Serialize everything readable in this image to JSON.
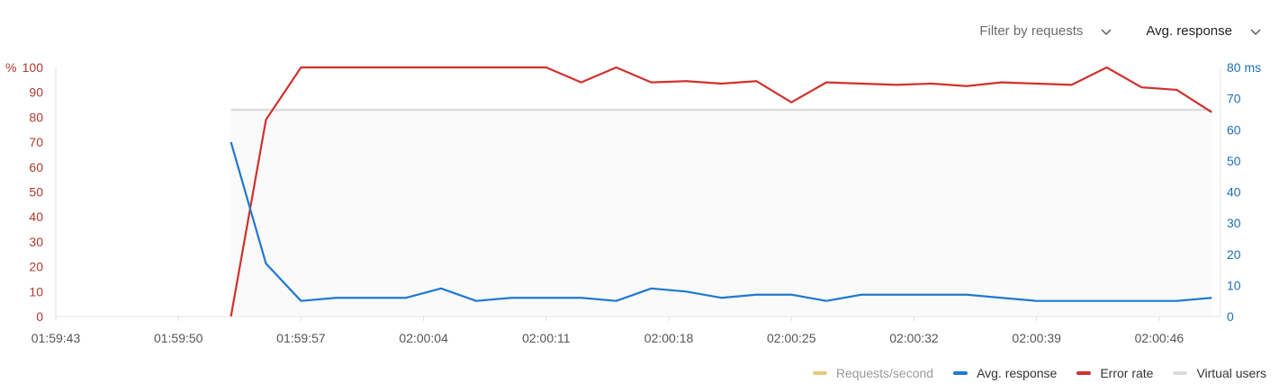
{
  "controls": {
    "filter_label": "Filter by requests",
    "metric_label": "Avg. response"
  },
  "legend": [
    {
      "label": "Requests/second",
      "color": "#e8c97a",
      "active": false
    },
    {
      "label": "Avg. response",
      "color": "#1f78d1",
      "active": true
    },
    {
      "label": "Error rate",
      "color": "#d0312d",
      "active": true
    },
    {
      "label": "Virtual users",
      "color": "#dcdcdc",
      "active": true
    }
  ],
  "chart_data": {
    "type": "line",
    "title": "",
    "xlabel": "",
    "x_ticks": [
      "01:59:43",
      "01:59:50",
      "01:59:57",
      "02:00:04",
      "02:00:11",
      "02:00:18",
      "02:00:25",
      "02:00:32",
      "02:00:39",
      "02:00:46"
    ],
    "x_tick_seconds": [
      0,
      7,
      14,
      21,
      28,
      35,
      42,
      49,
      56,
      63
    ],
    "x_range_seconds": [
      0,
      66.5
    ],
    "grid": false,
    "legend_position": "bottom-right",
    "y_left": {
      "unit_label": "%",
      "range": [
        0,
        100
      ],
      "ticks": [
        0,
        10,
        20,
        30,
        40,
        50,
        60,
        70,
        80,
        90,
        100
      ],
      "color": "#b03a2e"
    },
    "y_right": {
      "unit_label": "ms",
      "range": [
        0,
        80
      ],
      "ticks": [
        0,
        10,
        20,
        30,
        40,
        50,
        60,
        70,
        80
      ],
      "color": "#1f6fb5"
    },
    "series": [
      {
        "name": "Error rate",
        "axis": "left",
        "color": "#d0312d",
        "x": [
          10,
          12,
          14,
          16,
          18,
          20,
          22,
          24,
          26,
          28,
          30,
          32,
          34,
          36,
          38,
          40,
          42,
          44,
          46,
          48,
          50,
          52,
          54,
          56,
          58,
          60,
          62,
          64,
          66
        ],
        "y": [
          0,
          79,
          100,
          100,
          100,
          100,
          100,
          100,
          100,
          100,
          94,
          100,
          94,
          94.5,
          93.5,
          94.5,
          86,
          94,
          93.5,
          93,
          93.5,
          92.5,
          94,
          93.5,
          93,
          100,
          92,
          91,
          82
        ]
      },
      {
        "name": "Avg. response",
        "axis": "right",
        "color": "#1f78d1",
        "x": [
          10,
          12,
          14,
          16,
          18,
          20,
          22,
          24,
          26,
          28,
          30,
          32,
          34,
          36,
          38,
          40,
          42,
          44,
          46,
          48,
          50,
          52,
          54,
          56,
          58,
          60,
          62,
          64,
          66
        ],
        "y": [
          56,
          17,
          5,
          6,
          6,
          6,
          9,
          5,
          6,
          6,
          6,
          5,
          9,
          8,
          6,
          7,
          7,
          5,
          7,
          7,
          7,
          7,
          6,
          5,
          5,
          5,
          5,
          5,
          6
        ]
      },
      {
        "name": "Virtual users",
        "axis": "left",
        "color": "#dcdcdc",
        "area": true,
        "x": [
          10,
          66
        ],
        "y": [
          83,
          83
        ]
      }
    ]
  }
}
